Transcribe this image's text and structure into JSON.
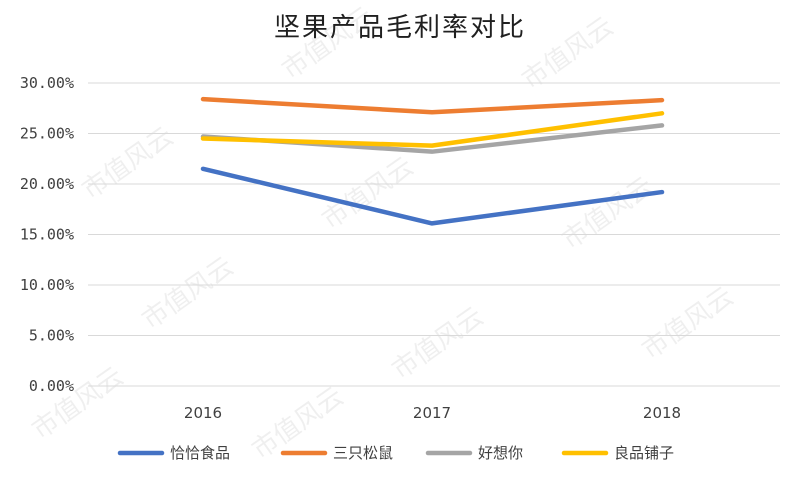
{
  "chart_data": {
    "type": "line",
    "title": "坚果产品毛利率对比",
    "categories": [
      "2016",
      "2017",
      "2018"
    ],
    "ylim": [
      0,
      0.3
    ],
    "yticks": [
      "0.00%",
      "5.00%",
      "10.00%",
      "15.00%",
      "20.00%",
      "25.00%",
      "30.00%"
    ],
    "grid": true,
    "legend_position": "bottom",
    "series": [
      {
        "name": "恰恰食品",
        "color": "#4472C4",
        "values": [
          0.215,
          0.161,
          0.192
        ]
      },
      {
        "name": "三只松鼠",
        "color": "#ED7D31",
        "values": [
          0.284,
          0.271,
          0.283
        ]
      },
      {
        "name": "好想你",
        "color": "#A5A5A5",
        "values": [
          0.247,
          0.232,
          0.258
        ]
      },
      {
        "name": "良品铺子",
        "color": "#FFC000",
        "values": [
          0.245,
          0.238,
          0.27
        ]
      }
    ]
  },
  "watermark": "市值风云"
}
